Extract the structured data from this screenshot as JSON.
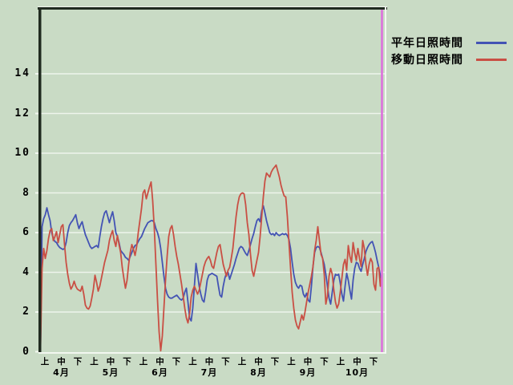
{
  "window": {
    "background_color": "#c9dbc5"
  },
  "legend": {
    "items": [
      {
        "label": "平年日照時間",
        "color": "#4353b4"
      },
      {
        "label": "移動日照時間",
        "color": "#c94f44"
      }
    ]
  },
  "chart_data": {
    "type": "line",
    "title": "",
    "xlabel": "",
    "ylabel": "",
    "x_axis": {
      "unit": "day",
      "months": [
        "4月",
        "5月",
        "6月",
        "7月",
        "8月",
        "9月",
        "10月"
      ],
      "period_labels": [
        "上",
        "中",
        "下"
      ]
    },
    "y_axis": {
      "ticks": [
        0,
        2,
        4,
        6,
        8,
        10,
        12,
        14
      ],
      "ylim": [
        0,
        17.2
      ]
    },
    "grid": {
      "horizontal": true,
      "vertical": false,
      "color": "#eef4ec"
    },
    "frame": {
      "dark_edge_color": "#202b20",
      "light_edge_color": "#f2f7f0"
    },
    "end_marker_line": {
      "color": "#dd70dd",
      "position": "right-edge"
    },
    "series": [
      {
        "name": "平年日照時間",
        "color": "#4353b4",
        "values": [
          0.1,
          6.3,
          6.7,
          6.9,
          7.25,
          6.9,
          6.6,
          6.0,
          5.7,
          5.55,
          5.5,
          5.35,
          5.25,
          5.2,
          5.15,
          5.2,
          5.5,
          6.0,
          6.35,
          6.5,
          6.6,
          6.75,
          6.9,
          6.5,
          6.2,
          6.4,
          6.55,
          6.2,
          5.9,
          5.7,
          5.5,
          5.3,
          5.2,
          5.25,
          5.3,
          5.35,
          5.25,
          5.8,
          6.3,
          6.7,
          7.0,
          7.1,
          6.8,
          6.5,
          6.8,
          7.05,
          6.6,
          6.0,
          5.8,
          5.5,
          5.1,
          5.0,
          4.9,
          4.75,
          4.7,
          4.6,
          4.8,
          5.0,
          5.2,
          5.35,
          5.4,
          5.55,
          5.7,
          5.8,
          6.0,
          6.2,
          6.35,
          6.5,
          6.55,
          6.6,
          6.6,
          6.5,
          6.2,
          6.0,
          5.7,
          5.2,
          4.5,
          3.8,
          3.2,
          2.9,
          2.75,
          2.7,
          2.7,
          2.75,
          2.8,
          2.85,
          2.75,
          2.65,
          2.6,
          2.7,
          3.0,
          3.2,
          2.5,
          1.7,
          1.55,
          2.2,
          3.3,
          4.45,
          3.9,
          3.3,
          2.9,
          2.6,
          2.5,
          3.0,
          3.6,
          3.85,
          3.9,
          3.95,
          3.9,
          3.85,
          3.8,
          3.3,
          2.85,
          2.75,
          3.3,
          3.7,
          3.95,
          4.0,
          3.65,
          3.9,
          4.15,
          4.4,
          4.7,
          4.95,
          5.2,
          5.3,
          5.25,
          5.1,
          4.95,
          4.85,
          5.1,
          5.4,
          5.7,
          5.95,
          6.3,
          6.6,
          6.7,
          6.55,
          7.1,
          7.35,
          7.0,
          6.6,
          6.3,
          6.0,
          5.9,
          5.95,
          5.85,
          6.0,
          5.9,
          5.85,
          5.9,
          5.95,
          5.9,
          5.95,
          5.85,
          5.65,
          5.2,
          4.5,
          3.9,
          3.5,
          3.3,
          3.2,
          3.35,
          3.3,
          2.9,
          2.75,
          2.95,
          2.6,
          2.5,
          3.3,
          4.3,
          5.0,
          5.25,
          5.3,
          5.25,
          5.0,
          4.7,
          4.4,
          3.9,
          3.3,
          2.7,
          2.4,
          3.0,
          3.6,
          3.9,
          3.85,
          3.9,
          3.45,
          2.9,
          2.55,
          3.3,
          3.95,
          3.6,
          3.1,
          2.65,
          3.6,
          4.2,
          4.5,
          4.45,
          4.2,
          4.05,
          4.4,
          4.7,
          5.05,
          5.25,
          5.4,
          5.5,
          5.55,
          5.3,
          5.0,
          4.6,
          4.25,
          3.85,
          3.55
        ]
      },
      {
        "name": "移動日照時間",
        "color": "#c94f44",
        "values": [
          0.1,
          4.2,
          5.2,
          4.7,
          5.1,
          5.7,
          6.1,
          6.2,
          5.6,
          5.8,
          6.05,
          5.5,
          5.9,
          6.3,
          6.4,
          5.4,
          4.5,
          3.9,
          3.45,
          3.15,
          3.3,
          3.55,
          3.3,
          3.15,
          3.1,
          3.05,
          3.3,
          2.9,
          2.35,
          2.2,
          2.15,
          2.3,
          2.7,
          3.15,
          3.85,
          3.5,
          3.05,
          3.3,
          3.7,
          4.1,
          4.5,
          4.8,
          5.1,
          5.6,
          5.9,
          6.1,
          5.6,
          5.3,
          5.85,
          5.4,
          5.0,
          4.25,
          3.7,
          3.2,
          3.6,
          4.4,
          5.0,
          5.4,
          5.15,
          4.85,
          5.3,
          6.0,
          6.6,
          7.2,
          8.0,
          8.15,
          7.7,
          8.0,
          8.3,
          8.55,
          7.6,
          6.2,
          4.4,
          2.6,
          1.0,
          0.05,
          0.8,
          2.2,
          3.6,
          4.8,
          5.8,
          6.2,
          6.35,
          5.9,
          5.3,
          4.8,
          4.4,
          3.9,
          3.4,
          2.8,
          2.2,
          1.7,
          1.45,
          1.9,
          2.75,
          3.1,
          3.3,
          3.1,
          2.9,
          3.1,
          3.5,
          3.9,
          4.3,
          4.55,
          4.7,
          4.8,
          4.6,
          4.3,
          4.2,
          4.6,
          5.0,
          5.3,
          5.4,
          4.9,
          4.4,
          4.1,
          3.8,
          4.1,
          4.25,
          4.7,
          5.2,
          6.0,
          6.8,
          7.4,
          7.8,
          7.95,
          8.0,
          7.95,
          7.4,
          6.5,
          5.9,
          4.9,
          4.1,
          3.8,
          4.2,
          4.6,
          5.0,
          5.8,
          6.8,
          7.8,
          8.6,
          9.0,
          8.9,
          8.8,
          9.05,
          9.2,
          9.3,
          9.4,
          9.1,
          8.8,
          8.4,
          8.1,
          7.85,
          7.8,
          6.8,
          5.5,
          4.2,
          3.0,
          2.2,
          1.6,
          1.3,
          1.15,
          1.5,
          1.85,
          1.6,
          2.0,
          2.5,
          3.0,
          3.4,
          3.8,
          4.3,
          5.1,
          5.6,
          6.3,
          5.6,
          4.9,
          4.7,
          3.9,
          2.4,
          2.8,
          3.8,
          4.2,
          3.9,
          3.1,
          2.5,
          2.2,
          2.4,
          3.0,
          3.7,
          4.4,
          4.65,
          4.1,
          5.35,
          4.8,
          4.5,
          5.5,
          5.0,
          4.6,
          5.2,
          4.7,
          4.3,
          5.6,
          5.2,
          4.4,
          3.85,
          4.4,
          4.7,
          4.5,
          3.4,
          3.1,
          4.2,
          4.25,
          3.3,
          3.9
        ]
      }
    ]
  }
}
